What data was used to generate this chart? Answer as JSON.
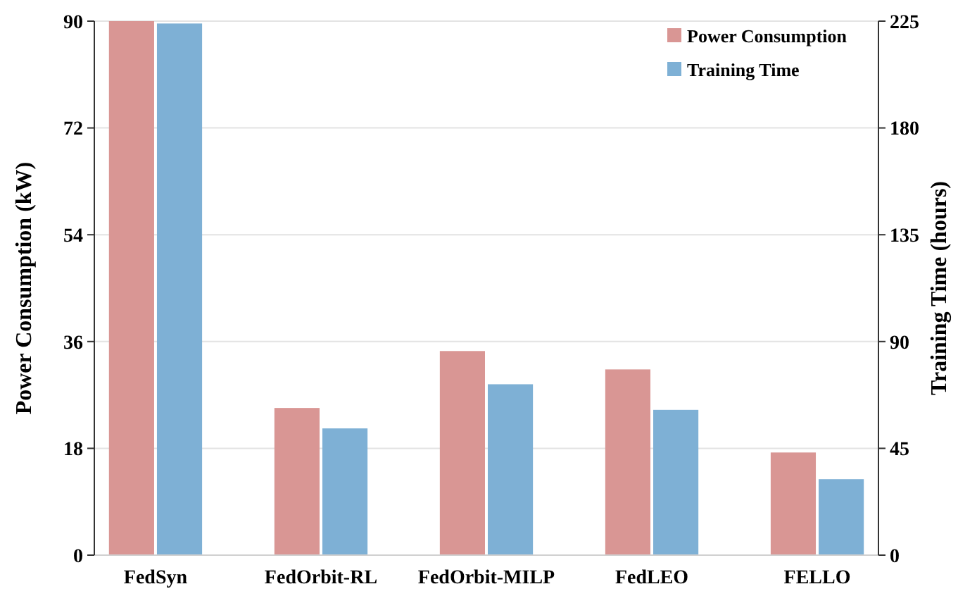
{
  "chart_data": {
    "type": "bar",
    "ylabel": "Power Consumption (kW)",
    "y2label": "Training Time (hours)",
    "categories": [
      "FedSyn",
      "FedOrbit-RL",
      "FedOrbit-MILP",
      "FedLEO",
      "FELLO"
    ],
    "series": [
      {
        "name": "Power Consumption",
        "color": "#d99694",
        "values": [
          90,
          24.8,
          34.4,
          31.3,
          17.3
        ]
      },
      {
        "name": "Training Time",
        "color": "#7eb0d5",
        "values": [
          224,
          53.4,
          72,
          61.2,
          32
        ],
        "axis": "y2"
      }
    ],
    "ylim": [
      0,
      90
    ],
    "yticks": [
      0,
      18,
      36,
      54,
      72,
      90
    ],
    "y2lim": [
      0,
      225
    ],
    "y2ticks": [
      0,
      45,
      90,
      135,
      180,
      225
    ],
    "grid": "y",
    "legend": "top right"
  }
}
